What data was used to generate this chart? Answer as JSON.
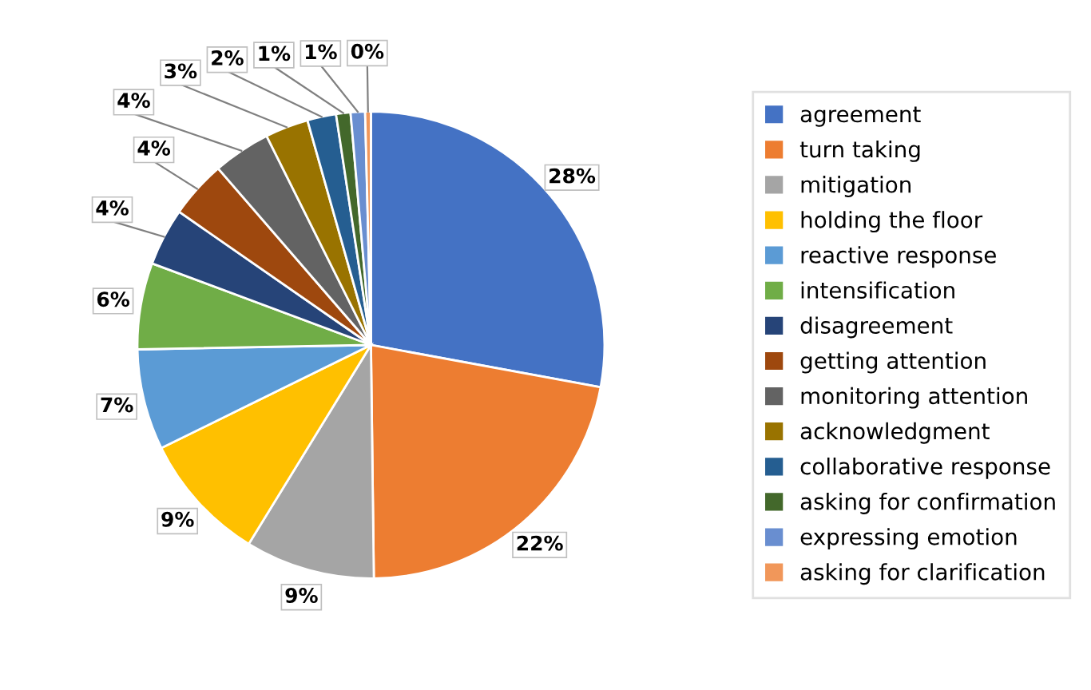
{
  "chart_data": {
    "type": "pie",
    "categories": [
      "agreement",
      "turn taking",
      "mitigation",
      "holding the floor",
      "reactive response",
      "intensification",
      "disagreement",
      "getting attention",
      "monitoring attention",
      "acknowledgment",
      "collaborative response",
      "asking for confirmation",
      "expressing emotion",
      "asking for clarification"
    ],
    "values": [
      28,
      22,
      9,
      9,
      7,
      6,
      4,
      4,
      4,
      3,
      2,
      1,
      1,
      0.4
    ],
    "value_labels": [
      "28%",
      "22%",
      "9%",
      "9%",
      "7%",
      "6%",
      "4%",
      "4%",
      "4%",
      "3%",
      "2%",
      "1%",
      "1%",
      "0%"
    ],
    "colors": [
      "#4472c4",
      "#ed7d31",
      "#a5a5a5",
      "#ffc000",
      "#5b9bd5",
      "#70ad47",
      "#264478",
      "#9e480e",
      "#636363",
      "#997300",
      "#255e91",
      "#43682b",
      "#698ed0",
      "#f1975a"
    ],
    "legend": "right"
  }
}
